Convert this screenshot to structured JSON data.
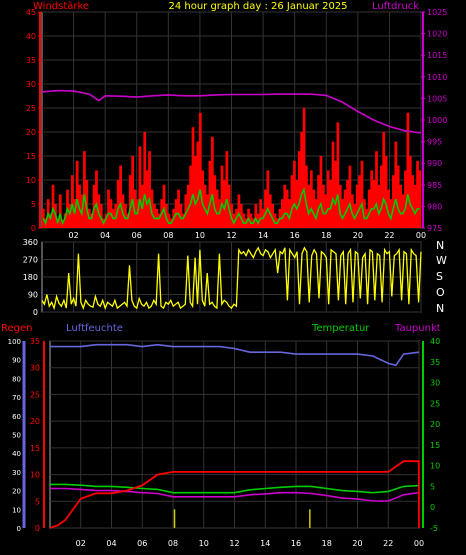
{
  "header": {
    "title": "24 hour graph day : 26 Januar 2025",
    "left_label": "Windstärke",
    "right_label": "Luftdruck"
  },
  "compass": [
    "N",
    "W",
    "S",
    "O",
    "N"
  ],
  "mid_labels": {
    "regen": "Regen",
    "luftfeuchte": "Luftfeuchte",
    "temperatur": "Temperatur",
    "taupunkt": "Taupunkt"
  },
  "colors": {
    "wind": "#ff0000",
    "gust_avg": "#00cc00",
    "pressure": "#cc00cc",
    "direction": "#ffff00",
    "rain": "#ff0000",
    "humidity": "#6666dd",
    "temperature": "#00cc00",
    "dewpoint": "#cc00cc",
    "title": "#ffff00"
  },
  "chart_data": [
    {
      "type": "bar",
      "id": "wind_pressure",
      "title": "24 hour graph day : 26 Januar 2025",
      "x_ticks": [
        "02",
        "04",
        "06",
        "08",
        "10",
        "12",
        "14",
        "16",
        "18",
        "20",
        "22",
        "00"
      ],
      "left_axis": {
        "label": "Windstärke",
        "ylim": [
          0,
          45
        ],
        "ticks": [
          "0",
          "5",
          "10",
          "15",
          "20",
          "25",
          "30",
          "35",
          "40",
          "45"
        ]
      },
      "right_axis": {
        "label": "Luftdruck",
        "ylim": [
          975,
          1025
        ],
        "ticks": [
          "975",
          "980",
          "985",
          "990",
          "995",
          "1000",
          "1005",
          "1010",
          "1015",
          "1020",
          "1025"
        ]
      },
      "series": [
        {
          "name": "Windstärke",
          "kind": "bar",
          "axis": "left",
          "values": [
            4,
            2,
            6,
            3,
            9,
            5,
            2,
            7,
            1,
            3,
            8,
            5,
            11,
            6,
            14,
            9,
            7,
            16,
            10,
            4,
            3,
            9,
            12,
            7,
            5,
            2,
            3,
            8,
            6,
            4,
            5,
            10,
            13,
            7,
            5,
            3,
            11,
            15,
            8,
            6,
            17,
            9,
            20,
            12,
            16,
            8,
            5,
            4,
            3,
            6,
            9,
            5,
            3,
            2,
            4,
            6,
            8,
            5,
            3,
            7,
            9,
            13,
            21,
            15,
            18,
            24,
            12,
            9,
            7,
            14,
            19,
            11,
            8,
            6,
            13,
            10,
            16,
            9,
            5,
            3,
            4,
            7,
            5,
            3,
            2,
            4,
            3,
            2,
            5,
            3,
            6,
            4,
            8,
            12,
            7,
            5,
            3,
            2,
            4,
            6,
            9,
            8,
            6,
            11,
            14,
            10,
            16,
            20,
            25,
            13,
            9,
            12,
            8,
            6,
            11,
            15,
            9,
            7,
            12,
            10,
            18,
            14,
            22,
            9,
            6,
            8,
            10,
            13,
            7,
            5,
            9,
            11,
            14,
            6,
            4,
            8,
            12,
            10,
            16,
            9,
            13,
            20,
            15,
            8,
            6,
            11,
            18,
            13,
            9,
            7,
            12,
            24,
            15,
            11,
            9,
            14,
            12
          ]
        },
        {
          "name": "Böen Mittel",
          "kind": "line",
          "axis": "left",
          "values": [
            2,
            1,
            3,
            2,
            4,
            3,
            1,
            3,
            1,
            2,
            4,
            3,
            5,
            3,
            6,
            4,
            3,
            7,
            4,
            2,
            2,
            4,
            5,
            3,
            2,
            1,
            2,
            3,
            3,
            2,
            2,
            4,
            5,
            3,
            2,
            2,
            4,
            6,
            3,
            3,
            6,
            4,
            7,
            5,
            6,
            3,
            2,
            2,
            2,
            3,
            4,
            2,
            1,
            1,
            2,
            3,
            3,
            2,
            2,
            3,
            4,
            5,
            7,
            5,
            6,
            8,
            5,
            4,
            3,
            5,
            7,
            4,
            3,
            3,
            5,
            4,
            6,
            4,
            2,
            1,
            2,
            3,
            2,
            1,
            1,
            2,
            1,
            1,
            2,
            1,
            2,
            2,
            3,
            4,
            3,
            2,
            1,
            1,
            2,
            2,
            3,
            3,
            2,
            4,
            5,
            4,
            5,
            7,
            8,
            5,
            3,
            4,
            3,
            2,
            4,
            5,
            3,
            3,
            4,
            4,
            6,
            5,
            7,
            3,
            2,
            3,
            4,
            5,
            3,
            2,
            3,
            4,
            5,
            2,
            2,
            3,
            4,
            4,
            5,
            3,
            4,
            6,
            5,
            3,
            2,
            4,
            6,
            4,
            3,
            3,
            4,
            7,
            5,
            4,
            3,
            4,
            4
          ]
        },
        {
          "name": "Luftdruck",
          "kind": "line",
          "axis": "right",
          "x": [
            0,
            1,
            2,
            3,
            3.6,
            4,
            5,
            6,
            7,
            8,
            9,
            10,
            11,
            12,
            13,
            14,
            15,
            16,
            17,
            18,
            19,
            20,
            21,
            22,
            23,
            24
          ],
          "values": [
            1006.5,
            1006.8,
            1006.7,
            1006.0,
            1004.5,
            1005.6,
            1005.5,
            1005.3,
            1005.6,
            1005.8,
            1005.6,
            1005.6,
            1005.8,
            1005.9,
            1005.9,
            1005.9,
            1006.0,
            1006.0,
            1006.0,
            1005.7,
            1004.2,
            1002.0,
            1000.0,
            998.5,
            997.5,
            997.0
          ]
        }
      ]
    },
    {
      "type": "line",
      "id": "wind_direction",
      "left_axis": {
        "ylim": [
          0,
          360
        ],
        "ticks": [
          "0",
          "90",
          "180",
          "270",
          "360"
        ]
      },
      "right_labels": [
        "N",
        "W",
        "S",
        "O",
        "N"
      ],
      "series": [
        {
          "name": "Windrichtung",
          "values": [
            60,
            40,
            90,
            30,
            50,
            20,
            80,
            45,
            30,
            60,
            20,
            200,
            40,
            70,
            30,
            300,
            50,
            20,
            60,
            40,
            30,
            25,
            80,
            40,
            30,
            60,
            20,
            50,
            40,
            30,
            60,
            20,
            30,
            40,
            50,
            30,
            240,
            60,
            30,
            20,
            70,
            40,
            30,
            50,
            20,
            30,
            60,
            40,
            300,
            30,
            20,
            50,
            40,
            60,
            30,
            40,
            50,
            20,
            30,
            40,
            290,
            50,
            30,
            280,
            40,
            320,
            60,
            30,
            200,
            40,
            50,
            30,
            20,
            300,
            40,
            60,
            50,
            30,
            20,
            40,
            30,
            320,
            300,
            310,
            290,
            320,
            300,
            280,
            310,
            330,
            300,
            290,
            320,
            310,
            280,
            300,
            320,
            200,
            310,
            300,
            330,
            60,
            320,
            300,
            280,
            310,
            40,
            300,
            330,
            310,
            50,
            290,
            320,
            300,
            70,
            310,
            300,
            280,
            40,
            320,
            310,
            300,
            60,
            290,
            310,
            40,
            300,
            320,
            50,
            310,
            300,
            70,
            280,
            300,
            40,
            320,
            310,
            60,
            300,
            290,
            50,
            320,
            300,
            310,
            80,
            290,
            300,
            320,
            60,
            310,
            300,
            40,
            320,
            300,
            290,
            50,
            310
          ]
        }
      ]
    },
    {
      "type": "line",
      "id": "rain_humidity_temp",
      "x_ticks": [
        "02",
        "04",
        "06",
        "08",
        "10",
        "12",
        "14",
        "16",
        "18",
        "20",
        "22",
        "00"
      ],
      "axes": {
        "humidity": {
          "label": "Luftfeuchte",
          "ylim": [
            0,
            100
          ],
          "ticks": [
            "0",
            "10",
            "20",
            "30",
            "40",
            "50",
            "60",
            "70",
            "80",
            "90",
            "100"
          ]
        },
        "rain": {
          "label": "Regen",
          "ylim": [
            0,
            35
          ],
          "ticks": [
            "0",
            "5",
            "10",
            "15",
            "20",
            "25",
            "30",
            "35"
          ]
        },
        "temperature": {
          "label": "Temperatur",
          "ylim": [
            -5,
            40
          ],
          "ticks": [
            "-5",
            "0",
            "5",
            "10",
            "15",
            "20",
            "25",
            "30",
            "35",
            "40"
          ]
        }
      },
      "series": [
        {
          "name": "Luftfeuchte",
          "axis": "humidity",
          "x": [
            0,
            1,
            2,
            3,
            4,
            5,
            6,
            7,
            8,
            9,
            10,
            11,
            12,
            13,
            14,
            15,
            16,
            17,
            18,
            19,
            20,
            21,
            22,
            22.5,
            23,
            24
          ],
          "values": [
            97,
            97,
            97,
            98,
            98,
            98,
            97,
            98,
            97,
            97,
            97,
            97,
            96,
            94,
            94,
            94,
            93,
            93,
            93,
            93,
            93,
            92,
            88,
            87,
            93,
            94
          ]
        },
        {
          "name": "Regen",
          "axis": "rain",
          "x": [
            0,
            0.5,
            1,
            2,
            3,
            4,
            5,
            6,
            7,
            8,
            9,
            10,
            11,
            12,
            13,
            14,
            15,
            16,
            17,
            18,
            19,
            20,
            21,
            22,
            23,
            23.99,
            24
          ],
          "values": [
            0,
            0.5,
            1.5,
            5.5,
            6.5,
            6.5,
            7,
            8,
            10,
            10.5,
            10.5,
            10.5,
            10.5,
            10.5,
            10.5,
            10.5,
            10.5,
            10.5,
            10.5,
            10.5,
            10.5,
            10.5,
            10.5,
            10.5,
            12.5,
            12.5,
            0
          ]
        },
        {
          "name": "Temperatur",
          "axis": "temperature",
          "x": [
            0,
            1,
            2,
            3,
            4,
            5,
            6,
            7,
            8,
            9,
            10,
            11,
            12,
            13,
            14,
            15,
            16,
            17,
            18,
            19,
            20,
            21,
            22,
            23,
            24
          ],
          "values": [
            5.5,
            5.5,
            5.3,
            5.0,
            5.0,
            4.8,
            4.5,
            4.3,
            3.5,
            3.5,
            3.5,
            3.5,
            3.5,
            4.2,
            4.5,
            4.8,
            5.0,
            5.0,
            4.5,
            4.0,
            3.8,
            3.5,
            3.8,
            5.0,
            5.2
          ]
        },
        {
          "name": "Taupunkt",
          "axis": "temperature",
          "x": [
            0,
            1,
            2,
            3,
            4,
            5,
            6,
            7,
            8,
            9,
            10,
            11,
            12,
            13,
            14,
            15,
            16,
            17,
            18,
            19,
            20,
            21,
            22,
            23,
            24
          ],
          "values": [
            4.5,
            4.5,
            4.3,
            4.0,
            4.0,
            3.8,
            3.5,
            3.3,
            2.5,
            2.5,
            2.5,
            2.5,
            2.5,
            3.0,
            3.2,
            3.5,
            3.5,
            3.3,
            2.8,
            2.2,
            2.0,
            1.5,
            1.5,
            3.0,
            3.5
          ]
        },
        {
          "name": "Regenrate",
          "axis": "rain",
          "kind": "spikes",
          "x": [
            8.1,
            16.9
          ],
          "values": [
            3.5,
            3.5
          ]
        }
      ]
    }
  ]
}
